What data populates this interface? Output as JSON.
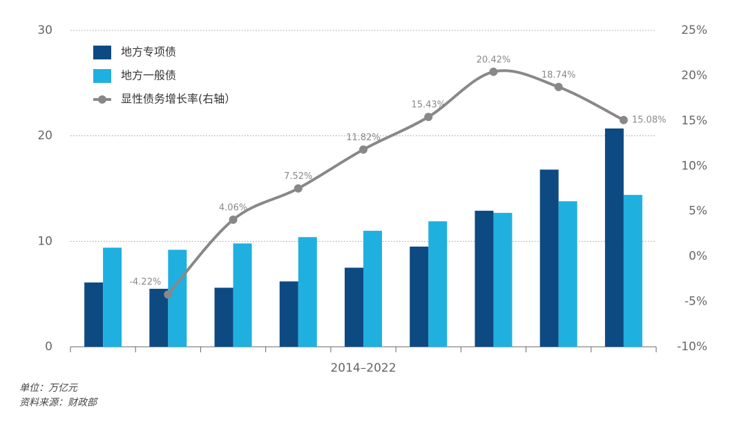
{
  "chart_data": {
    "type": "bar-line",
    "categories": [
      null,
      null,
      null,
      null,
      null,
      null,
      null,
      null,
      null
    ],
    "xlabel": "2014–2022",
    "series": [
      {
        "name": "地方专项债",
        "color": "#0d4a82",
        "values": [
          6.1,
          5.5,
          5.6,
          6.2,
          7.5,
          9.5,
          12.9,
          16.8,
          20.7
        ]
      },
      {
        "name": "地方一般债",
        "color": "#1fb0e0",
        "values": [
          9.4,
          9.2,
          9.8,
          10.4,
          11.0,
          11.9,
          12.7,
          13.8,
          14.4
        ]
      },
      {
        "name": "显性债务增长率(右轴）",
        "color": "#888888",
        "axis": "y2",
        "type": "line",
        "values": [
          null,
          -4.22,
          4.06,
          7.52,
          11.82,
          15.43,
          20.42,
          18.74,
          15.08
        ],
        "value_labels": [
          null,
          "-4.22%",
          "4.06%",
          "7.52%",
          "11.82%",
          "15.43%",
          "20.42%",
          "18.74%",
          "15.08%"
        ]
      }
    ],
    "ylim": [
      0,
      30
    ],
    "yticks": [
      0,
      10,
      20,
      30
    ],
    "y2lim": [
      -10,
      25
    ],
    "y2ticks": [
      {
        "value": -10,
        "label": "-10%"
      },
      {
        "value": -5,
        "label": "-5%"
      },
      {
        "value": 0,
        "label": "0%"
      },
      {
        "value": 5,
        "label": "5%"
      },
      {
        "value": 10,
        "label": "10%"
      },
      {
        "value": 15,
        "label": "15%"
      },
      {
        "value": 20,
        "label": "20%"
      },
      {
        "value": 25,
        "label": "25%"
      }
    ],
    "grid": true,
    "notes": [
      "单位：万亿元",
      "资料来源：财政部"
    ]
  }
}
